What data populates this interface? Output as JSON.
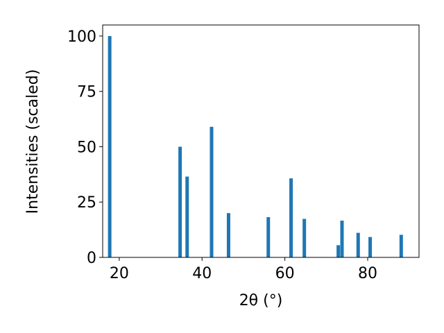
{
  "chart_data": {
    "type": "bar",
    "xlabel": "2θ (°)",
    "ylabel": "Intensities (scaled)",
    "x": [
      17.7,
      34.7,
      36.4,
      42.3,
      46.4,
      56.0,
      61.5,
      64.7,
      72.9,
      73.8,
      77.7,
      80.6,
      88.1
    ],
    "values": [
      100,
      50,
      36.5,
      59,
      20,
      18.2,
      35.7,
      17.4,
      5.5,
      16.6,
      11.1,
      9.2,
      10.2
    ],
    "color": "#1f77b4",
    "xlim": [
      16,
      92.4
    ],
    "xticks": [
      20,
      40,
      60,
      80
    ],
    "ylim": [
      0,
      105
    ],
    "yticks": [
      0,
      25,
      50,
      75,
      100
    ],
    "grid": false
  }
}
